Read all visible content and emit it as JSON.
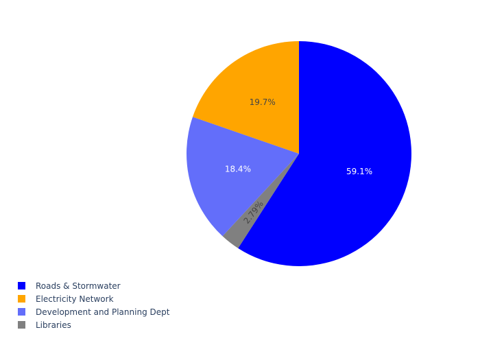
{
  "chart_data": {
    "type": "pie",
    "title": "",
    "slices": [
      {
        "label": "Roads & Stormwater",
        "value": 59.1,
        "display": "59.1%",
        "color": "#0000ff",
        "text_color": "#ffffff"
      },
      {
        "label": "Libraries",
        "value": 2.79,
        "display": "2.79%",
        "color": "#808080",
        "text_color": "#444444"
      },
      {
        "label": "Development and Planning Dept",
        "value": 18.4,
        "display": "18.4%",
        "color": "#636efa",
        "text_color": "#ffffff"
      },
      {
        "label": "Electricity Network",
        "value": 19.7,
        "display": "19.7%",
        "color": "#ffa500",
        "text_color": "#444444"
      }
    ],
    "legend": {
      "placement": "bottom-left",
      "order": [
        "Roads & Stormwater",
        "Electricity Network",
        "Development and Planning Dept",
        "Libraries"
      ]
    },
    "direction": "clockwise",
    "start": "top"
  }
}
